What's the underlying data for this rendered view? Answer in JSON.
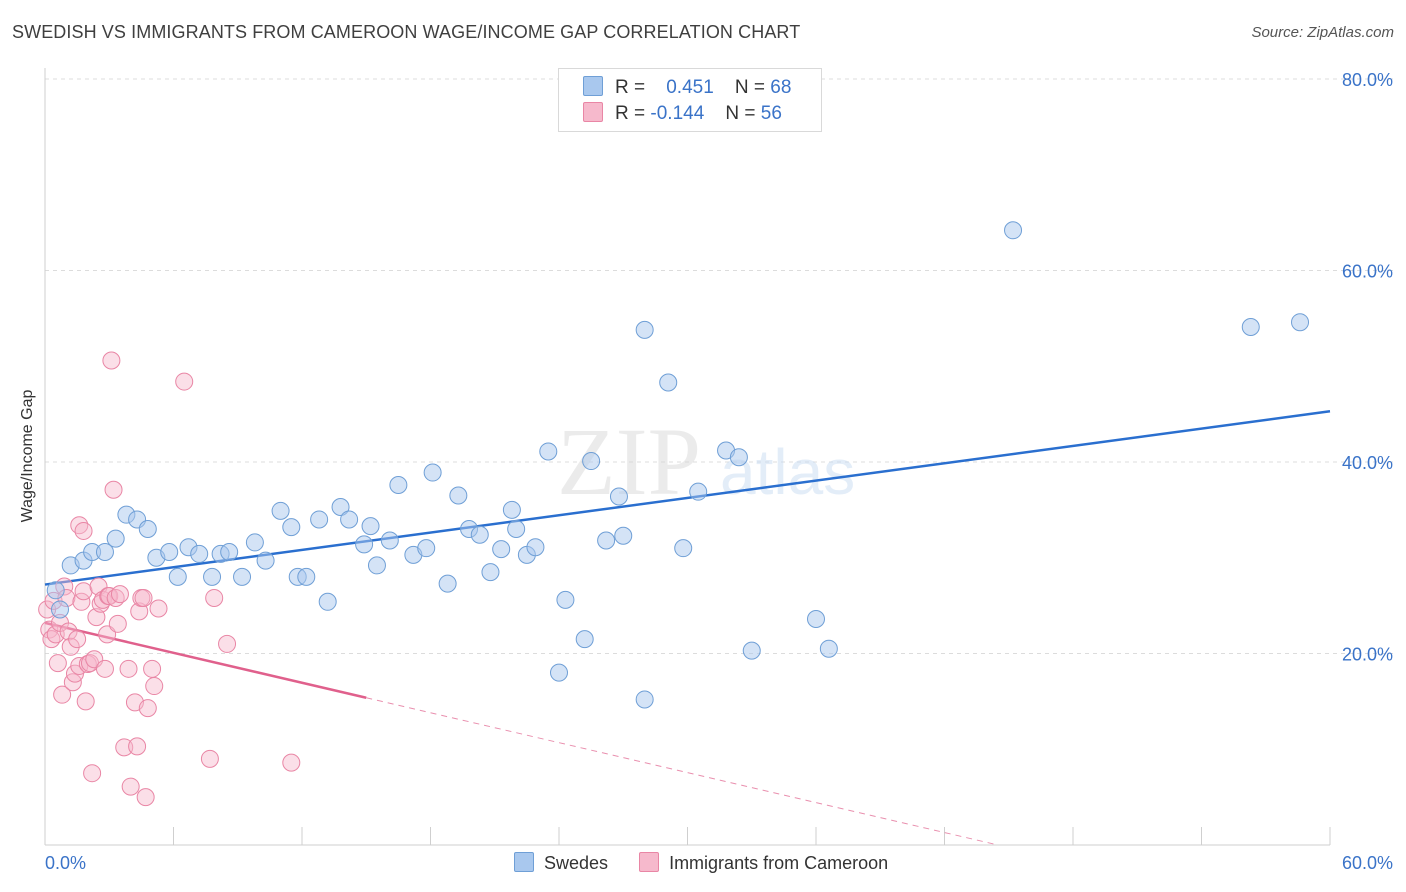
{
  "header": {
    "title": "SWEDISH VS IMMIGRANTS FROM CAMEROON WAGE/INCOME GAP CORRELATION CHART",
    "source": "Source: ZipAtlas.com"
  },
  "legend": {
    "rows": [
      {
        "r_label": "R =",
        "r_value": "0.451",
        "n_label": "N =",
        "n_value": "68"
      },
      {
        "r_label": "R =",
        "r_value": "-0.144",
        "n_label": "N =",
        "n_value": "56"
      }
    ],
    "bottom": [
      "Swedes",
      "Immigrants from Cameroon"
    ]
  },
  "watermark": {
    "zip": "ZIP",
    "atlas": "atlas"
  },
  "colors": {
    "blue_fill": "#a9c8ee",
    "blue_stroke": "#6f9fd6",
    "blue_line": "#2a6fcf",
    "pink_fill": "#f6b9cc",
    "pink_stroke": "#e986a5",
    "pink_line": "#e0608c",
    "tick_label": "#3a73c8",
    "grid": "#dcdcdc"
  },
  "chart_data": {
    "type": "scatter",
    "title": "SWEDISH VS IMMIGRANTS FROM CAMEROON WAGE/INCOME GAP CORRELATION CHART",
    "xlabel": "",
    "ylabel": "Wage/Income Gap",
    "xlim": [
      0,
      60
    ],
    "ylim": [
      0,
      80
    ],
    "x_tick_labels": [
      "0.0%",
      "60.0%"
    ],
    "y_ticks": [
      20,
      40,
      60,
      80
    ],
    "y_tick_labels": [
      "20.0%",
      "40.0%",
      "60.0%",
      "80.0%"
    ],
    "legend_position": "top-center",
    "series": [
      {
        "name": "Swedes",
        "r": 0.451,
        "n": 68,
        "trend": {
          "x0": 0,
          "y0": 27.2,
          "x1": 60,
          "y1": 45.3,
          "dashed_from": null
        },
        "points": [
          [
            0.5,
            26.6
          ],
          [
            0.7,
            24.6
          ],
          [
            1.2,
            29.2
          ],
          [
            1.8,
            29.7
          ],
          [
            2.2,
            30.6
          ],
          [
            2.8,
            30.6
          ],
          [
            3.3,
            32.0
          ],
          [
            3.8,
            34.5
          ],
          [
            4.3,
            34.0
          ],
          [
            4.8,
            33.0
          ],
          [
            5.2,
            30.0
          ],
          [
            5.8,
            30.6
          ],
          [
            6.2,
            28.0
          ],
          [
            6.7,
            31.1
          ],
          [
            7.2,
            30.4
          ],
          [
            7.8,
            28.0
          ],
          [
            8.2,
            30.4
          ],
          [
            8.6,
            30.6
          ],
          [
            9.2,
            28.0
          ],
          [
            9.8,
            31.6
          ],
          [
            10.3,
            29.7
          ],
          [
            11.0,
            34.9
          ],
          [
            11.5,
            33.2
          ],
          [
            11.8,
            28.0
          ],
          [
            12.2,
            28.0
          ],
          [
            12.8,
            34.0
          ],
          [
            13.2,
            25.4
          ],
          [
            13.8,
            35.3
          ],
          [
            14.2,
            34.0
          ],
          [
            14.9,
            31.4
          ],
          [
            15.2,
            33.3
          ],
          [
            15.5,
            29.2
          ],
          [
            16.1,
            31.8
          ],
          [
            16.5,
            37.6
          ],
          [
            17.2,
            30.3
          ],
          [
            17.8,
            31.0
          ],
          [
            18.1,
            38.9
          ],
          [
            18.8,
            27.3
          ],
          [
            19.3,
            36.5
          ],
          [
            19.8,
            33.0
          ],
          [
            20.3,
            32.4
          ],
          [
            20.8,
            28.5
          ],
          [
            21.3,
            30.9
          ],
          [
            21.8,
            35.0
          ],
          [
            22.0,
            33.0
          ],
          [
            22.5,
            30.3
          ],
          [
            22.9,
            31.1
          ],
          [
            23.5,
            41.1
          ],
          [
            24.0,
            18.0
          ],
          [
            24.3,
            25.6
          ],
          [
            25.2,
            21.5
          ],
          [
            25.5,
            40.1
          ],
          [
            26.2,
            31.8
          ],
          [
            26.8,
            36.4
          ],
          [
            27.0,
            32.3
          ],
          [
            28.0,
            53.8
          ],
          [
            28.0,
            15.2
          ],
          [
            29.1,
            48.3
          ],
          [
            29.8,
            31.0
          ],
          [
            30.5,
            36.9
          ],
          [
            31.8,
            41.2
          ],
          [
            32.4,
            40.5
          ],
          [
            33.0,
            20.3
          ],
          [
            36.0,
            23.6
          ],
          [
            36.6,
            20.5
          ],
          [
            45.2,
            64.2
          ],
          [
            56.3,
            54.1
          ],
          [
            58.6,
            54.6
          ]
        ]
      },
      {
        "name": "Immigrants from Cameroon",
        "r": -0.144,
        "n": 56,
        "trend": {
          "x0": 0,
          "y0": 23.2,
          "x1": 44.5,
          "y1": 0,
          "dashed_from": 15.0
        },
        "points": [
          [
            0.1,
            24.6
          ],
          [
            0.2,
            22.5
          ],
          [
            0.3,
            21.5
          ],
          [
            0.4,
            25.5
          ],
          [
            0.5,
            22.0
          ],
          [
            0.6,
            19.0
          ],
          [
            0.7,
            23.2
          ],
          [
            0.8,
            15.7
          ],
          [
            0.9,
            27.0
          ],
          [
            1.0,
            25.8
          ],
          [
            1.1,
            22.3
          ],
          [
            1.2,
            20.7
          ],
          [
            1.3,
            17.0
          ],
          [
            1.4,
            17.9
          ],
          [
            1.5,
            21.5
          ],
          [
            1.6,
            18.7
          ],
          [
            1.6,
            33.4
          ],
          [
            1.7,
            25.4
          ],
          [
            1.8,
            32.8
          ],
          [
            1.8,
            26.5
          ],
          [
            1.9,
            15.0
          ],
          [
            2.0,
            18.9
          ],
          [
            2.1,
            19.0
          ],
          [
            2.2,
            7.5
          ],
          [
            2.3,
            19.4
          ],
          [
            2.4,
            23.8
          ],
          [
            2.5,
            27.0
          ],
          [
            2.6,
            25.2
          ],
          [
            2.7,
            25.6
          ],
          [
            2.8,
            18.4
          ],
          [
            2.9,
            22.0
          ],
          [
            2.95,
            26.0
          ],
          [
            3.0,
            26.0
          ],
          [
            3.1,
            50.6
          ],
          [
            3.2,
            37.1
          ],
          [
            3.3,
            25.8
          ],
          [
            3.4,
            23.1
          ],
          [
            3.5,
            26.2
          ],
          [
            3.7,
            10.2
          ],
          [
            3.9,
            18.4
          ],
          [
            4.0,
            6.1
          ],
          [
            4.2,
            14.9
          ],
          [
            4.3,
            10.3
          ],
          [
            4.4,
            24.4
          ],
          [
            4.5,
            25.8
          ],
          [
            4.6,
            25.8
          ],
          [
            4.7,
            5.0
          ],
          [
            4.8,
            14.3
          ],
          [
            5.0,
            18.4
          ],
          [
            5.1,
            16.6
          ],
          [
            5.3,
            24.7
          ],
          [
            6.5,
            48.4
          ],
          [
            7.7,
            9.0
          ],
          [
            7.9,
            25.8
          ],
          [
            8.5,
            21.0
          ],
          [
            11.5,
            8.6
          ]
        ]
      }
    ]
  }
}
